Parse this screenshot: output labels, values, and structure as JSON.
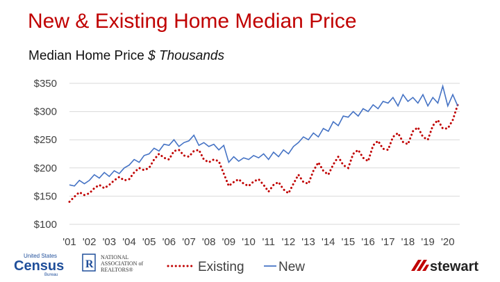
{
  "header": {
    "title": "New & Existing Home Median Price",
    "subtitle_main": "Median Home Price",
    "subtitle_unit": "$ Thousands"
  },
  "logos": {
    "census": {
      "line1": "United States",
      "line2": "Census",
      "line3": "Bureau"
    },
    "nar": {
      "line1": "NATIONAL",
      "line2": "ASSOCIATION of",
      "line3": "REALTORS®",
      "mark": "R"
    },
    "stewart": {
      "text": "stewart"
    }
  },
  "colors": {
    "existing": "#c00000",
    "new": "#4472c4",
    "grid": "#d9d9d9",
    "title": "#c00000"
  },
  "chart_data": {
    "type": "line",
    "title": "",
    "xlabel": "",
    "ylabel": "",
    "ylim": [
      100,
      350
    ],
    "xlim": [
      2001.0,
      2020.6
    ],
    "grid": true,
    "legend_position": "bottom",
    "x_tick_values": [
      2001,
      2002,
      2003,
      2004,
      2005,
      2006,
      2007,
      2008,
      2009,
      2010,
      2011,
      2012,
      2013,
      2014,
      2015,
      2016,
      2017,
      2018,
      2019,
      2020
    ],
    "x_tick_labels": [
      "'01",
      "'02",
      "'03",
      "'04",
      "'05",
      "'06",
      "'07",
      "'08",
      "'09",
      "'10",
      "'11",
      "'12",
      "'13",
      "'14",
      "'15",
      "'16",
      "'17",
      "'18",
      "'19",
      "'20"
    ],
    "y_ticks": [
      100,
      150,
      200,
      250,
      300,
      350
    ],
    "y_tick_labels": [
      "$100",
      "$150",
      "$200",
      "$250",
      "$300",
      "$350"
    ],
    "series": [
      {
        "name": "Existing",
        "style": "dotted",
        "x": [
          2001.0,
          2001.25,
          2001.5,
          2001.75,
          2002.0,
          2002.25,
          2002.5,
          2002.75,
          2003.0,
          2003.25,
          2003.5,
          2003.75,
          2004.0,
          2004.25,
          2004.5,
          2004.75,
          2005.0,
          2005.25,
          2005.5,
          2005.75,
          2006.0,
          2006.25,
          2006.5,
          2006.75,
          2007.0,
          2007.25,
          2007.5,
          2007.75,
          2008.0,
          2008.25,
          2008.5,
          2008.75,
          2009.0,
          2009.25,
          2009.5,
          2009.75,
          2010.0,
          2010.25,
          2010.5,
          2010.75,
          2011.0,
          2011.25,
          2011.5,
          2011.75,
          2012.0,
          2012.25,
          2012.5,
          2012.75,
          2013.0,
          2013.25,
          2013.5,
          2013.75,
          2014.0,
          2014.25,
          2014.5,
          2014.75,
          2015.0,
          2015.25,
          2015.5,
          2015.75,
          2016.0,
          2016.25,
          2016.5,
          2016.75,
          2017.0,
          2017.25,
          2017.5,
          2017.75,
          2018.0,
          2018.25,
          2018.5,
          2018.75,
          2019.0,
          2019.25,
          2019.5,
          2019.75,
          2020.0,
          2020.25,
          2020.5
        ],
        "values": [
          140,
          149,
          157,
          152,
          155,
          164,
          170,
          164,
          170,
          178,
          184,
          178,
          180,
          192,
          200,
          196,
          200,
          215,
          225,
          218,
          215,
          230,
          232,
          222,
          220,
          230,
          232,
          215,
          210,
          215,
          212,
          190,
          168,
          175,
          180,
          172,
          168,
          176,
          180,
          170,
          158,
          170,
          175,
          162,
          155,
          172,
          188,
          175,
          172,
          195,
          210,
          195,
          188,
          206,
          220,
          205,
          200,
          225,
          232,
          218,
          212,
          240,
          248,
          234,
          232,
          255,
          262,
          246,
          242,
          265,
          272,
          255,
          250,
          275,
          285,
          270,
          270,
          285,
          312
        ]
      },
      {
        "name": "New",
        "style": "solid",
        "x": [
          2001.0,
          2001.25,
          2001.5,
          2001.75,
          2002.0,
          2002.25,
          2002.5,
          2002.75,
          2003.0,
          2003.25,
          2003.5,
          2003.75,
          2004.0,
          2004.25,
          2004.5,
          2004.75,
          2005.0,
          2005.25,
          2005.5,
          2005.75,
          2006.0,
          2006.25,
          2006.5,
          2006.75,
          2007.0,
          2007.25,
          2007.5,
          2007.75,
          2008.0,
          2008.25,
          2008.5,
          2008.75,
          2009.0,
          2009.25,
          2009.5,
          2009.75,
          2010.0,
          2010.25,
          2010.5,
          2010.75,
          2011.0,
          2011.25,
          2011.5,
          2011.75,
          2012.0,
          2012.25,
          2012.5,
          2012.75,
          2013.0,
          2013.25,
          2013.5,
          2013.75,
          2014.0,
          2014.25,
          2014.5,
          2014.75,
          2015.0,
          2015.25,
          2015.5,
          2015.75,
          2016.0,
          2016.25,
          2016.5,
          2016.75,
          2017.0,
          2017.25,
          2017.5,
          2017.75,
          2018.0,
          2018.25,
          2018.5,
          2018.75,
          2019.0,
          2019.25,
          2019.5,
          2019.75,
          2020.0,
          2020.25,
          2020.5
        ],
        "values": [
          170,
          168,
          178,
          172,
          178,
          188,
          182,
          192,
          185,
          195,
          190,
          200,
          205,
          215,
          210,
          222,
          225,
          235,
          230,
          242,
          240,
          250,
          238,
          245,
          248,
          258,
          240,
          245,
          238,
          242,
          232,
          240,
          210,
          220,
          212,
          218,
          215,
          222,
          218,
          225,
          215,
          228,
          220,
          232,
          225,
          238,
          245,
          255,
          250,
          262,
          255,
          270,
          265,
          282,
          275,
          292,
          290,
          300,
          292,
          305,
          300,
          312,
          305,
          318,
          315,
          325,
          310,
          330,
          318,
          325,
          315,
          330,
          310,
          325,
          315,
          345,
          310,
          330,
          310
        ]
      }
    ]
  }
}
